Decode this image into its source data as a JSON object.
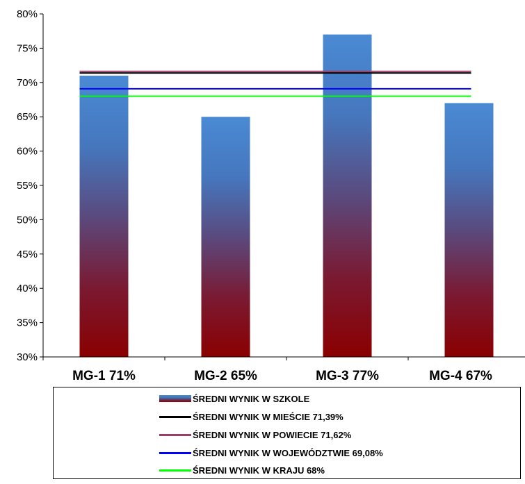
{
  "chart_data": {
    "type": "bar",
    "ylim": [
      30,
      80
    ],
    "y_ticks": [
      "30%",
      "35%",
      "40%",
      "45%",
      "50%",
      "55%",
      "60%",
      "65%",
      "70%",
      "75%",
      "80%"
    ],
    "y_tick_values": [
      30,
      35,
      40,
      45,
      50,
      55,
      60,
      65,
      70,
      75,
      80
    ],
    "categories": [
      "MG-1 71%",
      "MG-2 65%",
      "MG-3 77%",
      "MG-4 67%"
    ],
    "series": [
      {
        "name": "ŚREDNI WYNIK W SZKOLE",
        "kind": "bar",
        "values": [
          71,
          65,
          77,
          67
        ]
      },
      {
        "name": "ŚREDNI WYNIK W MIEŚCIE 71,39%",
        "kind": "line",
        "value": 71.39,
        "color": "#000000"
      },
      {
        "name": "ŚREDNI WYNIK W POWIECIE 71,62%",
        "kind": "line",
        "value": 71.62,
        "color": "#9b3f6a"
      },
      {
        "name": "ŚREDNI WYNIK W WOJEWÓDZTWIE 69,08%",
        "kind": "line",
        "value": 69.08,
        "color": "#0000ff"
      },
      {
        "name": "ŚREDNI WYNIK W KRAJU 68%",
        "kind": "line",
        "value": 68,
        "color": "#00ff00"
      }
    ],
    "grid": false,
    "legend_position": "bottom"
  }
}
